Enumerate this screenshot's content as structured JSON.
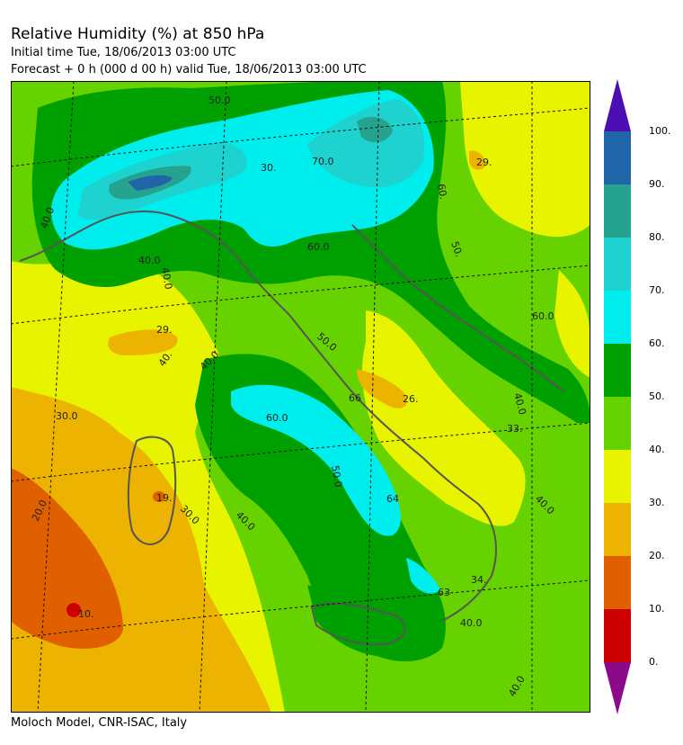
{
  "header": {
    "title": "Relative Humidity (%) at 850 hPa",
    "initial_time": "Initial time  Tue, 18/06/2013  03:00 UTC",
    "forecast": "Forecast +   0 h  (000 d 00 h)  valid Tue, 18/06/2013 03:00 UTC"
  },
  "footer": {
    "credit": "Moloch Model, CNR-ISAC, Italy"
  },
  "legend": {
    "ticks": [
      "100.",
      "90.",
      "80.",
      "70.",
      "60.",
      "50.",
      "40.",
      "30.",
      "20.",
      "10.",
      "0."
    ],
    "bands": [
      {
        "range": "90-100",
        "color": "#2065a8"
      },
      {
        "range": "80-90",
        "color": "#26a38e"
      },
      {
        "range": "70-80",
        "color": "#1ed2cf"
      },
      {
        "range": "60-70",
        "color": "#00eded"
      },
      {
        "range": "50-60",
        "color": "#00a000"
      },
      {
        "range": "40-50",
        "color": "#66d200"
      },
      {
        "range": "30-40",
        "color": "#e8f300"
      },
      {
        "range": "20-30",
        "color": "#ecb400"
      },
      {
        "range": "10-20",
        "color": "#e06000"
      },
      {
        "range": "0-10",
        "color": "#cc0000"
      }
    ],
    "over_color": "#4a10b4",
    "under_color": "#8a0a8a"
  },
  "map": {
    "contour_labels": [
      "50.0",
      "40.0",
      "40.0",
      "70.0",
      "60.0",
      "30.",
      "29.",
      "60.",
      "50.",
      "29.",
      "40.0",
      "40.",
      "40.0",
      "50.0",
      "60.0",
      "66",
      "26.",
      "30.0",
      "50.0",
      "33.",
      "40.0",
      "40.0",
      "64",
      "30.0",
      "19.",
      "20.0",
      "10.",
      "34.",
      "40.0",
      "40.0",
      "63",
      "60.0",
      "40.0"
    ]
  }
}
